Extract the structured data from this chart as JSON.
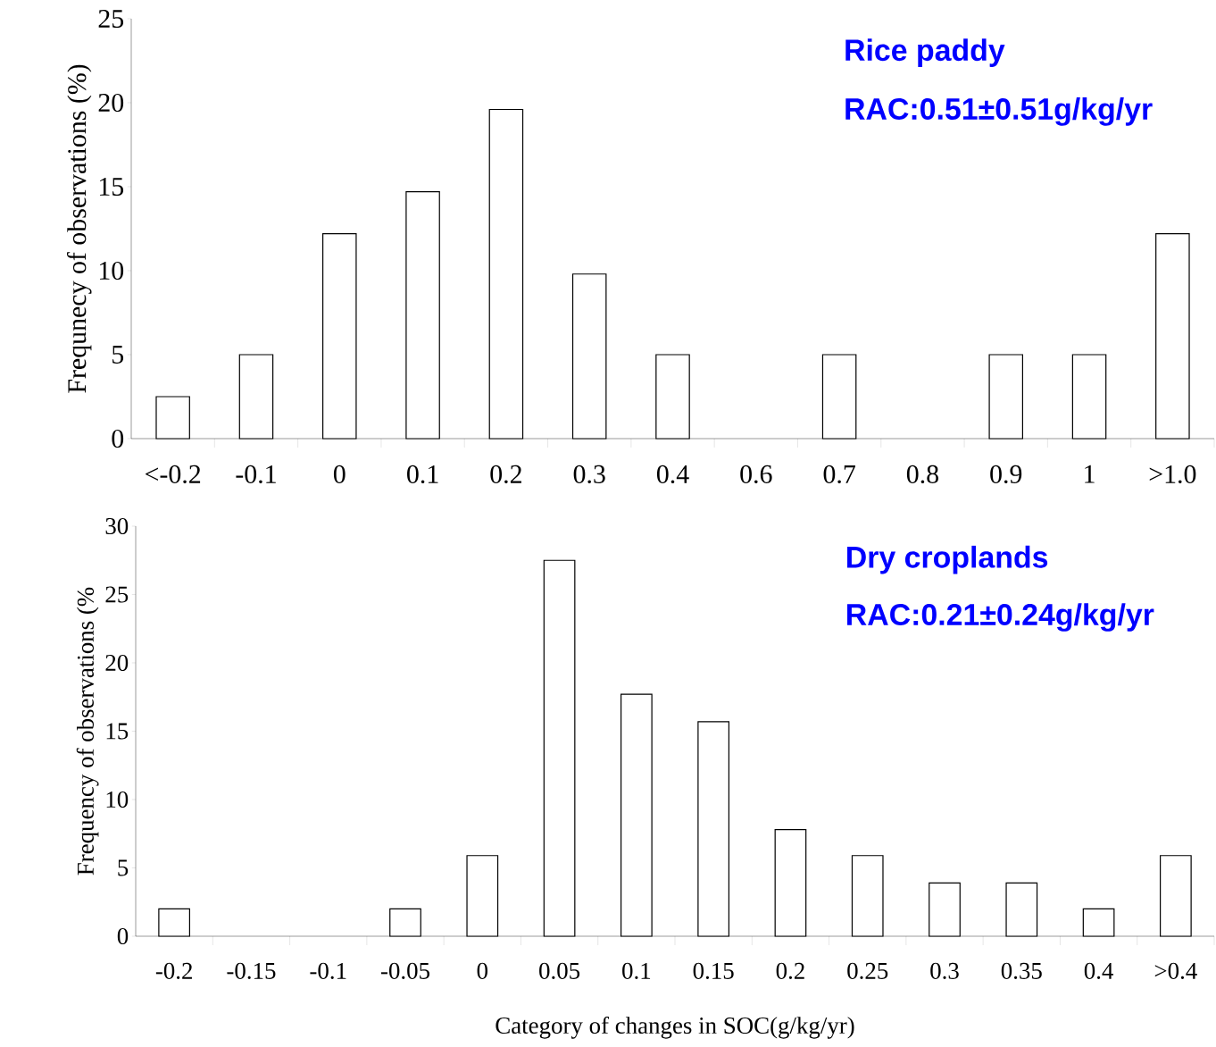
{
  "chart_data": [
    {
      "type": "bar",
      "ylabel": "Frequnecy of observations (%)",
      "categories": [
        "<-0.2",
        "-0.1",
        "0",
        "0.1",
        "0.2",
        "0.3",
        "0.4",
        "0.6",
        "0.7",
        "0.8",
        "0.9",
        "1",
        ">1.0"
      ],
      "values": [
        2.5,
        5,
        12.2,
        14.7,
        19.6,
        9.8,
        5,
        0,
        5,
        0,
        5,
        5,
        12.2
      ],
      "color": "#ffffff",
      "ylim": [
        0,
        25
      ],
      "yticks": [
        0,
        5,
        10,
        15,
        20,
        25
      ],
      "annotations": [
        "Rice paddy",
        "RAC:0.51±0.51g/kg/yr"
      ]
    },
    {
      "type": "bar",
      "ylabel": "Frequency of observations (%",
      "xlabel": "Category of changes in SOC(g/kg/yr)",
      "categories": [
        "-0.2",
        "-0.15",
        "-0.1",
        "-0.05",
        "0",
        "0.05",
        "0.1",
        "0.15",
        "0.2",
        "0.25",
        "0.3",
        "0.35",
        "0.4",
        ">0.4"
      ],
      "values": [
        2,
        0,
        0,
        2,
        5.9,
        27.5,
        17.7,
        15.7,
        7.8,
        5.9,
        3.9,
        3.9,
        2,
        5.9
      ],
      "color": "#ffffff",
      "ylim": [
        0,
        30
      ],
      "yticks": [
        0,
        5,
        10,
        15,
        20,
        25,
        30
      ],
      "annotations": [
        "Dry croplands",
        "RAC:0.21±0.24g/kg/yr"
      ]
    }
  ]
}
